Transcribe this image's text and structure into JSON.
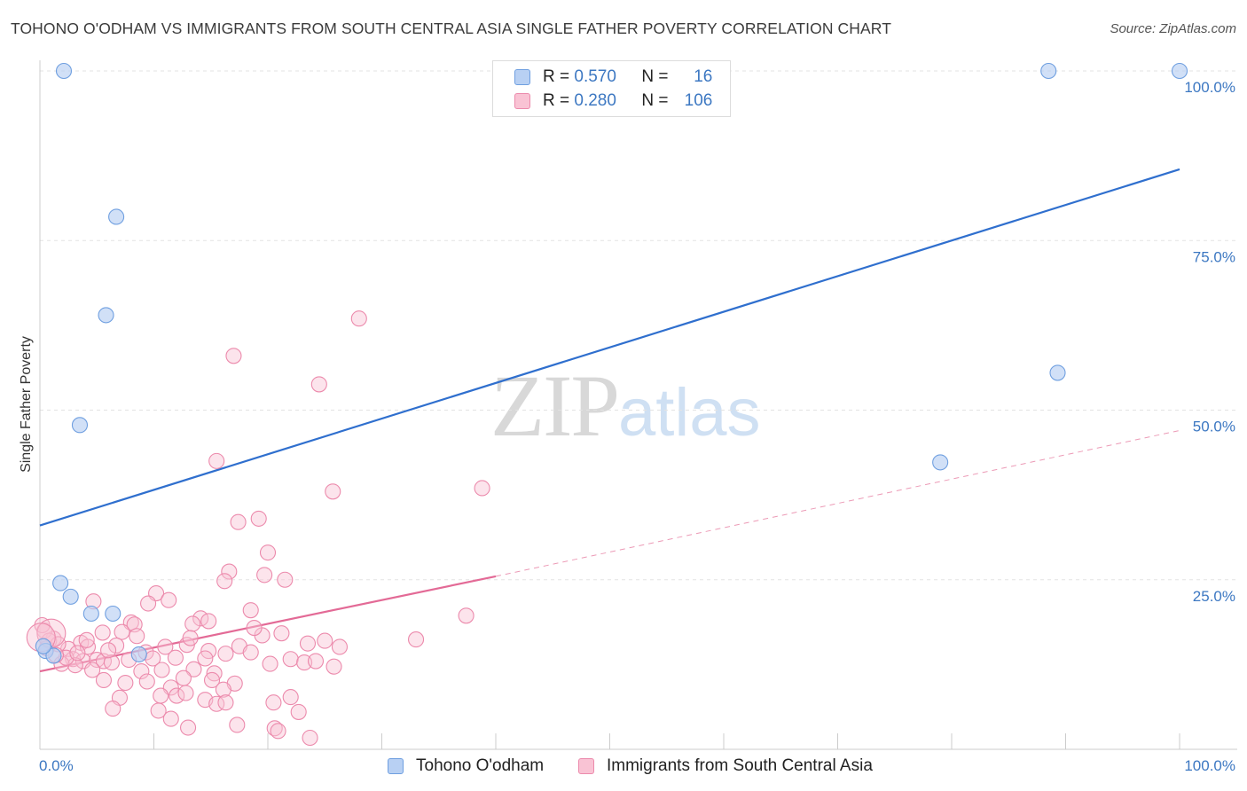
{
  "header": {
    "title": "TOHONO O'ODHAM VS IMMIGRANTS FROM SOUTH CENTRAL ASIA SINGLE FATHER POVERTY CORRELATION CHART",
    "source": "Source: ZipAtlas.com"
  },
  "watermark": {
    "zip": "ZIP",
    "atlas": "atlas"
  },
  "legend": {
    "rows": [
      {
        "r_label": "R = ",
        "r_value": "0.570",
        "n_label": "N = ",
        "n_value": "16",
        "color": "#6f9fe0"
      },
      {
        "r_label": "R = ",
        "r_value": "0.280",
        "n_label": "N = ",
        "n_value": "106",
        "color": "#ec8aac"
      }
    ]
  },
  "chart_data": {
    "type": "scatter",
    "title": "",
    "xlabel": "",
    "ylabel": "Single Father Poverty",
    "xlim": [
      0,
      100
    ],
    "ylim": [
      0,
      100
    ],
    "x_tick_labels": [
      "0.0%",
      "100.0%"
    ],
    "y_tick_labels": [
      "25.0%",
      "50.0%",
      "75.0%",
      "100.0%"
    ],
    "y_ticks": [
      25,
      50,
      75,
      100
    ],
    "grid": true,
    "legend_position": "bottom-center",
    "series": [
      {
        "name": "Tohono O'odham",
        "color": "#6f9fe0",
        "fill": "#b8d0f3",
        "trend": {
          "x": [
            0,
            100
          ],
          "y": [
            33,
            85.5
          ],
          "dashed_from": null
        },
        "points": [
          {
            "x": 2.1,
            "y": 100
          },
          {
            "x": 88.5,
            "y": 100
          },
          {
            "x": 100,
            "y": 100
          },
          {
            "x": 6.7,
            "y": 78.5
          },
          {
            "x": 5.8,
            "y": 64
          },
          {
            "x": 3.5,
            "y": 47.8
          },
          {
            "x": 89.3,
            "y": 55.5
          },
          {
            "x": 79,
            "y": 42.3
          },
          {
            "x": 1.8,
            "y": 24.5
          },
          {
            "x": 2.7,
            "y": 22.5
          },
          {
            "x": 4.5,
            "y": 20
          },
          {
            "x": 6.4,
            "y": 20
          },
          {
            "x": 0.5,
            "y": 14.5
          },
          {
            "x": 1.2,
            "y": 13.8
          },
          {
            "x": 8.7,
            "y": 14
          },
          {
            "x": 0.3,
            "y": 15.2
          }
        ]
      },
      {
        "name": "Immigrants from South Central Asia",
        "color": "#ec8aac",
        "fill": "#f9c3d4",
        "trend": {
          "x": [
            0,
            40,
            100
          ],
          "y": [
            11.5,
            25.5,
            47
          ],
          "dashed_from": 40
        },
        "points": [
          {
            "x": 28,
            "y": 63.5
          },
          {
            "x": 17,
            "y": 58
          },
          {
            "x": 24.5,
            "y": 53.8
          },
          {
            "x": 15.5,
            "y": 42.5
          },
          {
            "x": 25.7,
            "y": 38
          },
          {
            "x": 38.8,
            "y": 38.5
          },
          {
            "x": 17.4,
            "y": 33.5
          },
          {
            "x": 19.2,
            "y": 34
          },
          {
            "x": 20,
            "y": 29
          },
          {
            "x": 16.6,
            "y": 26.2
          },
          {
            "x": 16.2,
            "y": 24.8
          },
          {
            "x": 19.7,
            "y": 25.7
          },
          {
            "x": 21.5,
            "y": 25
          },
          {
            "x": 10.2,
            "y": 23
          },
          {
            "x": 11.3,
            "y": 22
          },
          {
            "x": 9.5,
            "y": 21.5
          },
          {
            "x": 4.7,
            "y": 21.8
          },
          {
            "x": 18.5,
            "y": 20.5
          },
          {
            "x": 37.4,
            "y": 19.7
          },
          {
            "x": 14.1,
            "y": 19.3
          },
          {
            "x": 14.8,
            "y": 18.9
          },
          {
            "x": 8,
            "y": 18.7
          },
          {
            "x": 8.3,
            "y": 18.4
          },
          {
            "x": 13.4,
            "y": 18.5
          },
          {
            "x": 7.2,
            "y": 17.3
          },
          {
            "x": 5.5,
            "y": 17.2
          },
          {
            "x": 19.5,
            "y": 16.8
          },
          {
            "x": 33,
            "y": 16.2
          },
          {
            "x": 25,
            "y": 16
          },
          {
            "x": 23.5,
            "y": 15.6
          },
          {
            "x": 6.7,
            "y": 15.3
          },
          {
            "x": 3.6,
            "y": 15.7
          },
          {
            "x": 4.2,
            "y": 15.1
          },
          {
            "x": 12.9,
            "y": 15.4
          },
          {
            "x": 11,
            "y": 15.1
          },
          {
            "x": 17.5,
            "y": 15.2
          },
          {
            "x": 14.8,
            "y": 14.5
          },
          {
            "x": 9.3,
            "y": 14.3
          },
          {
            "x": 2.5,
            "y": 14.8
          },
          {
            "x": 1.2,
            "y": 16.3
          },
          {
            "x": 0.4,
            "y": 17.5
          },
          {
            "x": 0.8,
            "y": 16
          },
          {
            "x": 1.6,
            "y": 15.5
          },
          {
            "x": 0.2,
            "y": 18.3
          },
          {
            "x": 2.9,
            "y": 13.3
          },
          {
            "x": 3.8,
            "y": 13
          },
          {
            "x": 5,
            "y": 13.2
          },
          {
            "x": 5.6,
            "y": 13
          },
          {
            "x": 7.8,
            "y": 13.2
          },
          {
            "x": 9.9,
            "y": 13.4
          },
          {
            "x": 11.9,
            "y": 13.5
          },
          {
            "x": 14.5,
            "y": 13.4
          },
          {
            "x": 16.3,
            "y": 14.1
          },
          {
            "x": 18.5,
            "y": 14.3
          },
          {
            "x": 22,
            "y": 13.3
          },
          {
            "x": 23.2,
            "y": 12.8
          },
          {
            "x": 25.8,
            "y": 12.2
          },
          {
            "x": 20.2,
            "y": 12.6
          },
          {
            "x": 6.3,
            "y": 12.8
          },
          {
            "x": 3.1,
            "y": 12.4
          },
          {
            "x": 1.9,
            "y": 12.6
          },
          {
            "x": 4.6,
            "y": 11.7
          },
          {
            "x": 8.9,
            "y": 11.5
          },
          {
            "x": 10.7,
            "y": 11.7
          },
          {
            "x": 13.5,
            "y": 11.8
          },
          {
            "x": 15.3,
            "y": 11.2
          },
          {
            "x": 12.6,
            "y": 10.5
          },
          {
            "x": 9.4,
            "y": 10
          },
          {
            "x": 7.5,
            "y": 9.8
          },
          {
            "x": 5.6,
            "y": 10.2
          },
          {
            "x": 17.1,
            "y": 9.7
          },
          {
            "x": 15.1,
            "y": 10.2
          },
          {
            "x": 11.5,
            "y": 9.1
          },
          {
            "x": 16.1,
            "y": 8.8
          },
          {
            "x": 10.6,
            "y": 7.9
          },
          {
            "x": 12,
            "y": 7.9
          },
          {
            "x": 12.8,
            "y": 8.3
          },
          {
            "x": 7,
            "y": 7.6
          },
          {
            "x": 14.5,
            "y": 7.3
          },
          {
            "x": 15.5,
            "y": 6.7
          },
          {
            "x": 16.3,
            "y": 6.9
          },
          {
            "x": 22,
            "y": 7.7
          },
          {
            "x": 20.5,
            "y": 6.9
          },
          {
            "x": 10.4,
            "y": 5.7
          },
          {
            "x": 6.4,
            "y": 6
          },
          {
            "x": 11.5,
            "y": 4.5
          },
          {
            "x": 22.7,
            "y": 5.5
          },
          {
            "x": 13,
            "y": 3.2
          },
          {
            "x": 17.3,
            "y": 3.6
          },
          {
            "x": 20.6,
            "y": 3.1
          },
          {
            "x": 20.9,
            "y": 2.7
          },
          {
            "x": 23.7,
            "y": 1.7
          },
          {
            "x": 2.3,
            "y": 13.5
          },
          {
            "x": 0.6,
            "y": 14.9
          },
          {
            "x": 1.4,
            "y": 13.9
          },
          {
            "x": 3.3,
            "y": 14.2
          },
          {
            "x": 4.1,
            "y": 16.1
          },
          {
            "x": 6,
            "y": 14.6
          },
          {
            "x": 24.2,
            "y": 13
          },
          {
            "x": 18.8,
            "y": 17.9
          },
          {
            "x": 21.2,
            "y": 17.1
          },
          {
            "x": 13.2,
            "y": 16.4
          },
          {
            "x": 8.5,
            "y": 16.7
          },
          {
            "x": 26.3,
            "y": 15.1
          },
          {
            "x": 1,
            "y": 17.1
          },
          {
            "x": 0.1,
            "y": 16.5
          }
        ]
      }
    ]
  }
}
